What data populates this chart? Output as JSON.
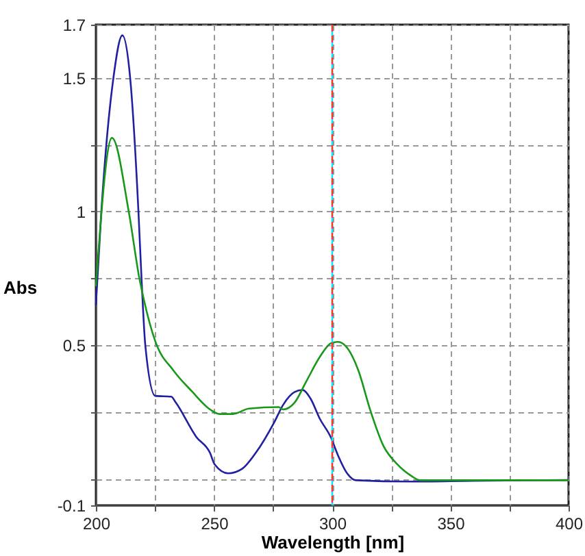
{
  "chart_data": {
    "type": "line",
    "xlabel": "Wavelength [nm]",
    "ylabel": "Abs",
    "xlim": [
      200,
      400
    ],
    "ylim": [
      -0.1,
      1.7
    ],
    "xticks": [
      200,
      {
        "value": 225,
        "label": null
      },
      250,
      {
        "value": 275,
        "label": null
      },
      300,
      {
        "value": 325,
        "label": null
      },
      350,
      {
        "value": 375,
        "label": null
      },
      400
    ],
    "yticks": [
      -0.1,
      {
        "value": 0,
        "label": null
      },
      {
        "value": 0.25,
        "label": null
      },
      0.5,
      {
        "value": 0.75,
        "label": null
      },
      1,
      {
        "value": 1.25,
        "label": null
      },
      1.5,
      1.7
    ],
    "grid": true,
    "marker": "none",
    "line_style": "solid",
    "ref_lines": [
      {
        "axis": "x",
        "value": 300,
        "color": "#00e8ff",
        "line_style": "solid"
      },
      {
        "axis": "x",
        "value": 300,
        "color": "#ff3030",
        "line_style": "dashed"
      }
    ],
    "series": [
      {
        "color": "#2020a0",
        "x": [
          200,
          202.3,
          207.4,
          211.2,
          214.5,
          218,
          219.3,
          220.9,
          225.1,
          231.9,
          233.8,
          242.5,
          248.3,
          250.2,
          256,
          261.9,
          267.6,
          275.4,
          279.2,
          284,
          287.4,
          290.8,
          294.7,
          299.5,
          302.4,
          306.3,
          310.1,
          333,
          360,
          400
        ],
        "values": [
          0.65,
          1.0,
          1.5,
          1.66,
          1.5,
          1.0,
          0.75,
          0.5,
          0.31,
          0.307,
          0.285,
          0.156,
          0.096,
          0.054,
          0.02,
          0.037,
          0.096,
          0.21,
          0.276,
          0.324,
          0.332,
          0.3,
          0.225,
          0.153,
          0.088,
          0.02,
          -0.006,
          -0.011,
          -0.008,
          -0.005
        ]
      },
      {
        "color": "#189818",
        "x": [
          200,
          206.8,
          213.9,
          218.4,
          220.3,
          225.1,
          232.9,
          240.6,
          248.3,
          252.2,
          258,
          264.7,
          277.3,
          279.2,
          284.1,
          288.9,
          294.7,
          299.5,
          302.4,
          306.3,
          311.1,
          316,
          321.7,
          327.5,
          333.3,
          337.2,
          350,
          400
        ],
        "values": [
          0.72,
          1.276,
          1.0,
          0.75,
          0.67,
          0.515,
          0.404,
          0.327,
          0.259,
          0.242,
          0.242,
          0.262,
          0.268,
          0.259,
          0.285,
          0.362,
          0.455,
          0.507,
          0.512,
          0.49,
          0.404,
          0.259,
          0.122,
          0.054,
          0.011,
          -0.006,
          -0.006,
          -0.006
        ]
      }
    ]
  }
}
